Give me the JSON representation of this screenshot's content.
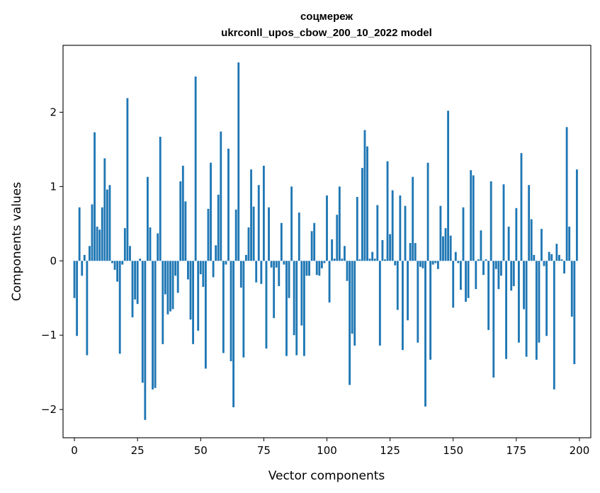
{
  "chart_data": {
    "type": "bar",
    "title": "соцмереж",
    "subtitle": "ukrconll_upos_cbow_200_10_2022 model",
    "xlabel": "Vector components",
    "ylabel": "Components values",
    "xlim": [
      -4.5,
      204.5
    ],
    "ylim": [
      -2.38,
      2.9
    ],
    "xticks": [
      0,
      25,
      50,
      75,
      100,
      125,
      150,
      175,
      200
    ],
    "yticks": [
      -2,
      -1,
      0,
      1,
      2
    ],
    "ytick_labels": [
      "−2",
      "−1",
      "0",
      "1",
      "2"
    ],
    "bar_color": "#1f77b4",
    "grid": false,
    "values": [
      -0.5,
      -1.01,
      0.72,
      -0.2,
      0.08,
      -1.27,
      0.2,
      0.76,
      1.73,
      0.46,
      0.42,
      0.72,
      1.38,
      0.96,
      1.02,
      -0.03,
      -0.12,
      -0.28,
      -1.25,
      -0.05,
      0.44,
      2.19,
      0.2,
      -0.76,
      -0.52,
      -0.58,
      0.03,
      -1.64,
      -2.14,
      1.13,
      0.45,
      -1.73,
      -1.71,
      0.37,
      1.67,
      -1.12,
      -0.45,
      -0.72,
      -0.68,
      -0.65,
      -0.2,
      -0.43,
      1.07,
      1.28,
      0.8,
      -0.25,
      -0.79,
      -1.12,
      2.48,
      -0.94,
      -0.18,
      -0.35,
      -1.45,
      0.7,
      1.32,
      -0.22,
      0.21,
      0.89,
      1.74,
      -1.24,
      -0.05,
      1.51,
      -1.35,
      -1.97,
      0.69,
      2.67,
      -0.36,
      -1.3,
      0.08,
      0.45,
      1.23,
      0.73,
      -0.29,
      1.02,
      -0.31,
      1.28,
      -1.18,
      0.72,
      -0.09,
      -0.77,
      -0.09,
      -0.34,
      0.51,
      -0.05,
      -1.28,
      -0.5,
      1.0,
      -1.0,
      -1.27,
      0.65,
      -0.87,
      -1.28,
      -0.2,
      -0.2,
      0.4,
      0.51,
      -0.19,
      -0.2,
      -0.1,
      -0.03,
      0.88,
      -0.56,
      0.29,
      0.03,
      0.62,
      1.0,
      0.03,
      0.2,
      -0.27,
      -1.67,
      -0.98,
      -1.14,
      0.86,
      0.02,
      1.25,
      1.76,
      1.54,
      0.03,
      0.12,
      0.03,
      0.75,
      -1.14,
      0.28,
      0.02,
      1.34,
      0.36,
      0.95,
      -0.06,
      -0.66,
      0.88,
      -1.2,
      0.74,
      -0.8,
      0.24,
      1.13,
      0.24,
      -1.1,
      -0.08,
      -0.1,
      -1.96,
      1.32,
      -1.33,
      -0.05,
      -0.03,
      -0.11,
      0.74,
      0.33,
      0.44,
      2.02,
      0.34,
      -0.63,
      0.12,
      -0.03,
      -0.39,
      0.72,
      -0.55,
      -0.5,
      1.22,
      1.15,
      -0.38,
      0.02,
      0.41,
      -0.19,
      0.02,
      -0.93,
      1.07,
      -1.57,
      -0.11,
      -0.38,
      -0.2,
      1.03,
      -1.32,
      0.46,
      -0.4,
      -0.34,
      0.71,
      -1.1,
      1.45,
      -0.65,
      -1.29,
      1.02,
      0.56,
      0.08,
      -1.33,
      -1.1,
      0.43,
      -0.07,
      -1.01,
      0.12,
      0.09,
      -1.73,
      0.23,
      0.08,
      0.02,
      -0.17,
      1.8,
      0.46,
      -0.75,
      -1.39,
      1.23
    ]
  }
}
